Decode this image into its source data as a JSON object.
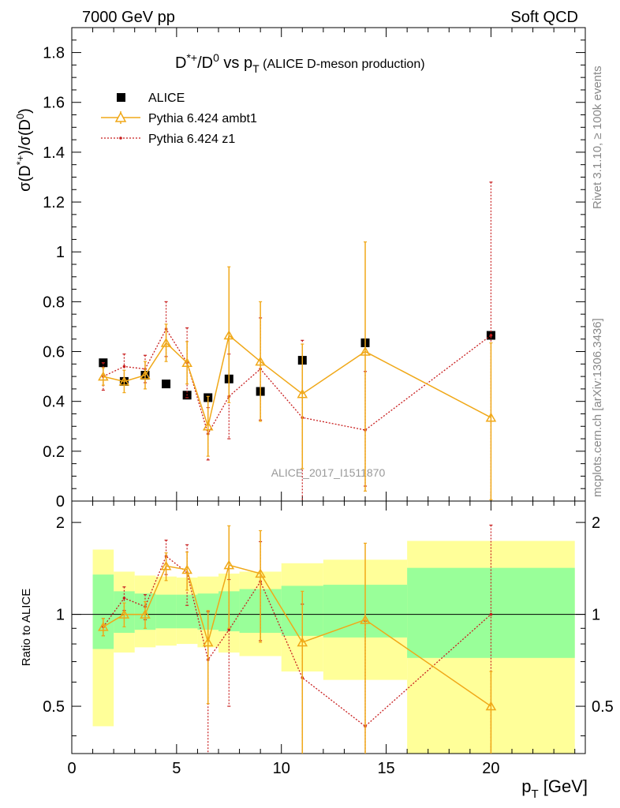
{
  "header": {
    "left": "7000 GeV pp",
    "right": "Soft QCD"
  },
  "side_labels": {
    "rivet": "Rivet 3.1.10, ≥ 100k events",
    "mcplots": "mcplots.cern.ch [arXiv:1306.3436]"
  },
  "chart_data": [
    {
      "panel": "main",
      "type": "scatter",
      "title_main": "D*+/D0 vs pT",
      "title_sub": "(ALICE D-meson production)",
      "ylabel": "σ(D*+)/σ(D0)",
      "xlabel": "pT [GeV]",
      "xlim": [
        0,
        24.5
      ],
      "ylim": [
        0,
        1.9
      ],
      "yticks": [
        0,
        0.2,
        0.4,
        0.6,
        0.8,
        1,
        1.2,
        1.4,
        1.6,
        1.8
      ],
      "yticklabels": [
        "0",
        "0.2",
        "0.4",
        "0.6",
        "0.8",
        "1",
        "1.2",
        "1.4",
        "1.6",
        "1.8"
      ],
      "analysis_label": "ALICE_2017_I1511870",
      "legend": {
        "placement": "top-left",
        "entries": [
          "ALICE",
          "Pythia 6.424 ambt1",
          "Pythia 6.424 z1"
        ]
      },
      "series": [
        {
          "name": "ALICE",
          "marker": "square",
          "color": "#000000",
          "x": [
            1.5,
            2.5,
            3.5,
            4.5,
            5.5,
            6.5,
            7.5,
            9,
            11,
            14,
            20
          ],
          "y": [
            0.555,
            0.48,
            0.505,
            0.47,
            0.425,
            0.415,
            0.49,
            0.44,
            0.565,
            0.635,
            0.665
          ]
        },
        {
          "name": "Pythia 6.424 ambt1",
          "marker": "triangle-open",
          "style": "solid",
          "color": "#f0a818",
          "x": [
            1.5,
            2.5,
            3.5,
            4.5,
            5.5,
            6.5,
            7.5,
            9,
            11,
            14,
            20
          ],
          "y": [
            0.5,
            0.48,
            0.505,
            0.635,
            0.555,
            0.3,
            0.665,
            0.56,
            0.43,
            0.6,
            0.335
          ],
          "err_lo": [
            0.035,
            0.045,
            0.055,
            0.075,
            0.085,
            0.12,
            0.27,
            0.24,
            0.3,
            0.56,
            0.33
          ],
          "err_hi": [
            0.035,
            0.045,
            0.055,
            0.075,
            0.085,
            0.12,
            0.275,
            0.24,
            0.2,
            0.44,
            0.3
          ]
        },
        {
          "name": "Pythia 6.424 z1",
          "marker": "dot",
          "style": "dotted",
          "color": "#c81e1e",
          "x": [
            1.5,
            2.5,
            3.5,
            4.5,
            5.5,
            6.5,
            7.5,
            9,
            11,
            14,
            20
          ],
          "y": [
            0.5,
            0.54,
            0.53,
            0.69,
            0.555,
            0.27,
            0.42,
            0.53,
            0.335,
            0.285,
            0.665
          ],
          "err_lo": [
            0.055,
            0.05,
            0.055,
            0.11,
            0.14,
            0.105,
            0.17,
            0.205,
            0.335,
            0.225,
            0.665
          ],
          "err_hi": [
            0.055,
            0.05,
            0.055,
            0.11,
            0.14,
            0.105,
            0.17,
            0.205,
            0.31,
            0.235,
            0.615
          ]
        }
      ]
    },
    {
      "panel": "ratio",
      "type": "scatter",
      "ylabel": "Ratio to ALICE",
      "xlabel": "pT [GeV]",
      "xlim": [
        0,
        24.5
      ],
      "ylim": [
        0.35,
        2.35
      ],
      "yscale": "log",
      "yticks": [
        0.5,
        1,
        2
      ],
      "yticklabels": [
        "0.5",
        "1",
        "2"
      ],
      "xticks": [
        0,
        5,
        10,
        15,
        20
      ],
      "xticklabels": [
        "0",
        "5",
        "10",
        "15",
        "20"
      ],
      "bands": [
        {
          "x0": 1,
          "x1": 2,
          "inner": [
            0.77,
            1.35
          ],
          "outer": [
            0.43,
            1.63
          ]
        },
        {
          "x0": 2,
          "x1": 3,
          "inner": [
            0.87,
            1.19
          ],
          "outer": [
            0.75,
            1.38
          ]
        },
        {
          "x0": 3,
          "x1": 4,
          "inner": [
            0.89,
            1.17
          ],
          "outer": [
            0.78,
            1.34
          ]
        },
        {
          "x0": 4,
          "x1": 5,
          "inner": [
            0.9,
            1.16
          ],
          "outer": [
            0.79,
            1.33
          ]
        },
        {
          "x0": 5,
          "x1": 6,
          "inner": [
            0.9,
            1.16
          ],
          "outer": [
            0.8,
            1.32
          ]
        },
        {
          "x0": 6,
          "x1": 7,
          "inner": [
            0.89,
            1.17
          ],
          "outer": [
            0.78,
            1.33
          ]
        },
        {
          "x0": 7,
          "x1": 8,
          "inner": [
            0.88,
            1.19
          ],
          "outer": [
            0.75,
            1.36
          ]
        },
        {
          "x0": 8,
          "x1": 10,
          "inner": [
            0.87,
            1.21
          ],
          "outer": [
            0.73,
            1.38
          ]
        },
        {
          "x0": 10,
          "x1": 12,
          "inner": [
            0.85,
            1.24
          ],
          "outer": [
            0.65,
            1.47
          ]
        },
        {
          "x0": 12,
          "x1": 16,
          "inner": [
            0.84,
            1.25
          ],
          "outer": [
            0.61,
            1.51
          ]
        },
        {
          "x0": 16,
          "x1": 24,
          "inner": [
            0.72,
            1.42
          ],
          "outer": [
            0.35,
            1.74
          ]
        }
      ],
      "series": [
        {
          "name": "Pythia 6.424 ambt1",
          "color": "#f0a818",
          "x": [
            1.5,
            2.5,
            3.5,
            4.5,
            5.5,
            6.5,
            7.5,
            9,
            11,
            14,
            20
          ],
          "y": [
            0.91,
            1.0,
            1.0,
            1.44,
            1.4,
            0.81,
            1.45,
            1.36,
            0.81,
            0.96,
            0.5
          ],
          "err_lo": [
            0.06,
            0.09,
            0.1,
            0.15,
            0.2,
            0.3,
            0.55,
            0.55,
            0.46,
            0.82,
            0.15
          ],
          "err_hi": [
            0.06,
            0.09,
            0.1,
            0.15,
            0.2,
            0.22,
            0.5,
            0.52,
            0.38,
            0.75,
            0.15
          ]
        },
        {
          "name": "Pythia 6.424 z1",
          "color": "#c81e1e",
          "x": [
            1.5,
            2.5,
            3.5,
            4.5,
            5.5,
            6.5,
            7.5,
            9,
            11,
            14,
            20
          ],
          "y": [
            0.91,
            1.13,
            1.06,
            1.55,
            1.37,
            0.71,
            0.89,
            1.28,
            0.62,
            0.43,
            1.0
          ],
          "err_lo": [
            0.06,
            0.1,
            0.1,
            0.2,
            0.3,
            0.37,
            0.39,
            0.46,
            0.27,
            0.08,
            0.65
          ],
          "err_hi": [
            0.06,
            0.1,
            0.1,
            0.2,
            0.32,
            0.31,
            0.41,
            0.45,
            0.46,
            0.52,
            0.96
          ]
        }
      ]
    }
  ]
}
